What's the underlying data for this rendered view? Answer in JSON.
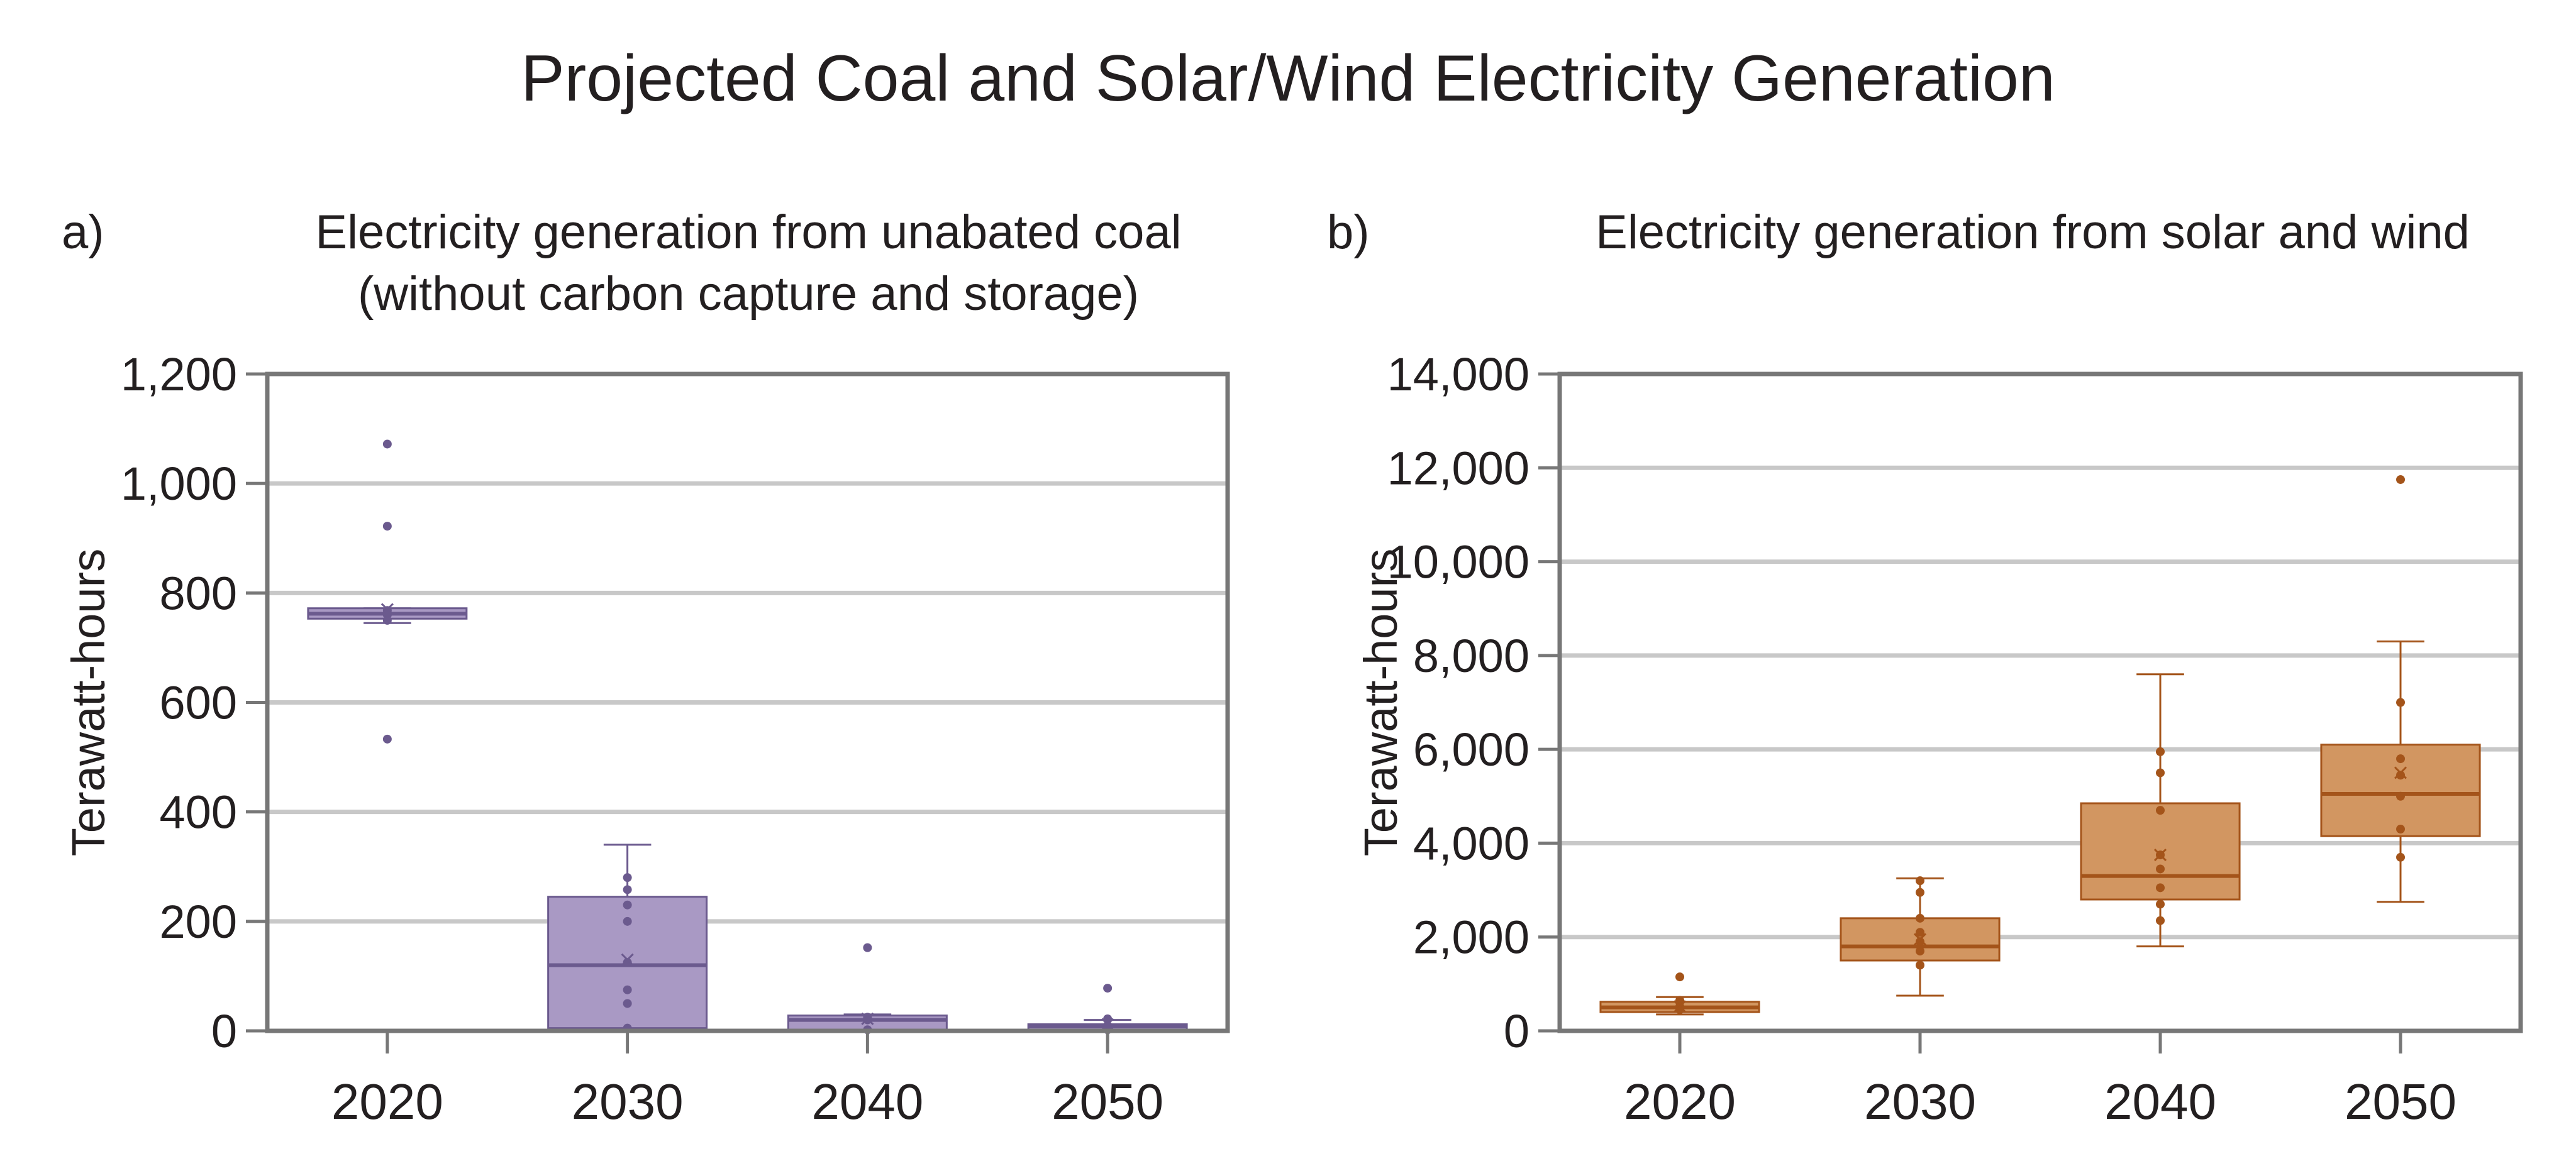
{
  "figure_title": "Projected Coal and Solar/Wind Electricity Generation",
  "chart_data": [
    {
      "type": "box",
      "panel_label": "a)",
      "title_lines": [
        "Electricity generation from unabated coal",
        "(without carbon capture and storage)"
      ],
      "ylabel": "Terawatt-hours",
      "ylim": [
        0,
        1200
      ],
      "yticks": [
        0,
        200,
        400,
        600,
        800,
        1000,
        1200
      ],
      "ytick_labels": [
        "0",
        "200",
        "400",
        "600",
        "800",
        "1,000",
        "1,200"
      ],
      "grid": true,
      "color": "#a999c4",
      "edge_color": "#6b5a8e",
      "categories": [
        "2020",
        "2030",
        "2040",
        "2050"
      ],
      "boxes": [
        {
          "category": "2020",
          "whisker_low": 745,
          "q1": 753,
          "median": 762,
          "q3": 772,
          "whisker_high": 772,
          "mean": 770,
          "points": [
            1072,
            922,
            768,
            760,
            750,
            533
          ]
        },
        {
          "category": "2030",
          "whisker_low": 0,
          "q1": 5,
          "median": 120,
          "q3": 245,
          "whisker_high": 340,
          "mean": 130,
          "points": [
            280,
            258,
            230,
            200,
            125,
            75,
            50,
            5
          ]
        },
        {
          "category": "2040",
          "whisker_low": 0,
          "q1": 2,
          "median": 20,
          "q3": 28,
          "whisker_high": 30,
          "mean": 22,
          "points": [
            152,
            25,
            20,
            2
          ]
        },
        {
          "category": "2050",
          "whisker_low": 0,
          "q1": 1,
          "median": 8,
          "q3": 12,
          "whisker_high": 20,
          "mean": 12,
          "points": [
            78,
            22,
            10,
            2
          ]
        }
      ]
    },
    {
      "type": "box",
      "panel_label": "b)",
      "title_lines": [
        "Electricity generation from solar and wind"
      ],
      "ylabel": "Terawatt-hours",
      "ylim": [
        0,
        14000
      ],
      "yticks": [
        0,
        2000,
        4000,
        6000,
        8000,
        10000,
        12000,
        14000
      ],
      "ytick_labels": [
        "0",
        "2,000",
        "4,000",
        "6,000",
        "8,000",
        "10,000",
        "12,000",
        "14,000"
      ],
      "grid": true,
      "color": "#d29661",
      "edge_color": "#a4541a",
      "categories": [
        "2020",
        "2030",
        "2040",
        "2050"
      ],
      "boxes": [
        {
          "category": "2020",
          "whisker_low": 350,
          "q1": 400,
          "median": 500,
          "q3": 620,
          "whisker_high": 720,
          "mean": 520,
          "points": [
            1150,
            650,
            520,
            450
          ]
        },
        {
          "category": "2030",
          "whisker_low": 750,
          "q1": 1500,
          "median": 1800,
          "q3": 2400,
          "whisker_high": 3250,
          "mean": 1950,
          "points": [
            3200,
            2950,
            2400,
            2100,
            1900,
            1700,
            1400
          ]
        },
        {
          "category": "2040",
          "whisker_low": 1800,
          "q1": 2800,
          "median": 3300,
          "q3": 4850,
          "whisker_high": 7600,
          "mean": 3750,
          "points": [
            5950,
            5500,
            4700,
            3750,
            3450,
            3050,
            2700,
            2350
          ]
        },
        {
          "category": "2050",
          "whisker_low": 2750,
          "q1": 4150,
          "median": 5050,
          "q3": 6100,
          "whisker_high": 8300,
          "mean": 5500,
          "points": [
            11750,
            7000,
            5800,
            5450,
            5000,
            4300,
            3700
          ]
        }
      ]
    }
  ]
}
